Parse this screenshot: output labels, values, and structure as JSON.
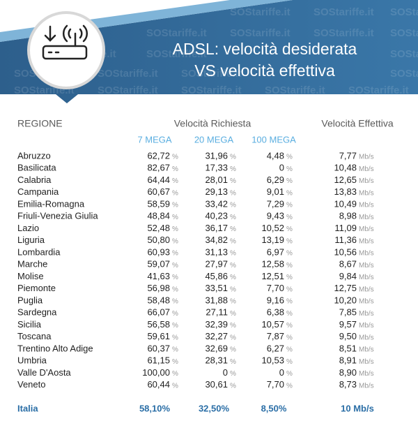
{
  "header": {
    "title_line1": "ADSL: velocità desiderata",
    "title_line2": "VS velocità effettiva",
    "watermark": "SOStariffe.it"
  },
  "table": {
    "col_region": "REGIONE",
    "col_requested": "Velocità Richiesta",
    "col_effective": "Velocità Effettiva",
    "subcols": [
      "7 MEGA",
      "20 MEGA",
      "100 MEGA"
    ],
    "rows": [
      {
        "name": "Abruzzo",
        "cells": [
          {
            "v": "62,72",
            "u": "%"
          },
          {
            "v": "31,96",
            "u": "%"
          },
          {
            "v": "4,48",
            "u": "%"
          },
          {
            "v": "7,77",
            "u": "Mb/s"
          }
        ]
      },
      {
        "name": "Basilicata",
        "cells": [
          {
            "v": "82,67",
            "u": "%"
          },
          {
            "v": "17,33",
            "u": "%"
          },
          {
            "v": "0",
            "u": "%"
          },
          {
            "v": "10,48",
            "u": "Mb/s"
          }
        ]
      },
      {
        "name": "Calabria",
        "cells": [
          {
            "v": "64,44",
            "u": "%"
          },
          {
            "v": "28,01",
            "u": "%"
          },
          {
            "v": "6,29",
            "u": "%"
          },
          {
            "v": "12,65",
            "u": "Mb/s"
          }
        ]
      },
      {
        "name": "Campania",
        "cells": [
          {
            "v": "60,67",
            "u": "%"
          },
          {
            "v": "29,13",
            "u": "%"
          },
          {
            "v": "9,01",
            "u": "%"
          },
          {
            "v": "13,83",
            "u": "Mb/s"
          }
        ]
      },
      {
        "name": "Emilia-Romagna",
        "cells": [
          {
            "v": "58,59",
            "u": "%"
          },
          {
            "v": "33,42",
            "u": "%"
          },
          {
            "v": "7,29",
            "u": "%"
          },
          {
            "v": "10,49",
            "u": "Mb/s"
          }
        ]
      },
      {
        "name": "Friuli-Venezia Giulia",
        "cells": [
          {
            "v": "48,84",
            "u": "%"
          },
          {
            "v": "40,23",
            "u": "%"
          },
          {
            "v": "9,43",
            "u": "%"
          },
          {
            "v": "8,98",
            "u": "Mb/s"
          }
        ]
      },
      {
        "name": "Lazio",
        "cells": [
          {
            "v": "52,48",
            "u": "%"
          },
          {
            "v": "36,17",
            "u": "%"
          },
          {
            "v": "10,52",
            "u": "%"
          },
          {
            "v": "11,09",
            "u": "Mb/s"
          }
        ]
      },
      {
        "name": "Liguria",
        "cells": [
          {
            "v": "50,80",
            "u": "%"
          },
          {
            "v": "34,82",
            "u": "%"
          },
          {
            "v": "13,19",
            "u": "%"
          },
          {
            "v": "11,36",
            "u": "Mb/s"
          }
        ]
      },
      {
        "name": "Lombardia",
        "cells": [
          {
            "v": "60,93",
            "u": "%"
          },
          {
            "v": "31,13",
            "u": "%"
          },
          {
            "v": "6,97",
            "u": "%"
          },
          {
            "v": "10,56",
            "u": "Mb/s"
          }
        ]
      },
      {
        "name": "Marche",
        "cells": [
          {
            "v": "59,07",
            "u": "%"
          },
          {
            "v": "27,97",
            "u": "%"
          },
          {
            "v": "12,58",
            "u": "%"
          },
          {
            "v": "8,67",
            "u": "Mb/s"
          }
        ]
      },
      {
        "name": "Molise",
        "cells": [
          {
            "v": "41,63",
            "u": "%"
          },
          {
            "v": "45,86",
            "u": "%"
          },
          {
            "v": "12,51",
            "u": "%"
          },
          {
            "v": "9,84",
            "u": "Mb/s"
          }
        ]
      },
      {
        "name": "Piemonte",
        "cells": [
          {
            "v": "56,98",
            "u": "%"
          },
          {
            "v": "33,51",
            "u": "%"
          },
          {
            "v": "7,70",
            "u": "%"
          },
          {
            "v": "12,75",
            "u": "Mb/s"
          }
        ]
      },
      {
        "name": "Puglia",
        "cells": [
          {
            "v": "58,48",
            "u": "%"
          },
          {
            "v": "31,88",
            "u": "%"
          },
          {
            "v": "9,16",
            "u": "%"
          },
          {
            "v": "10,20",
            "u": "Mb/s"
          }
        ]
      },
      {
        "name": "Sardegna",
        "cells": [
          {
            "v": "66,07",
            "u": "%"
          },
          {
            "v": "27,11",
            "u": "%"
          },
          {
            "v": "6,38",
            "u": "%"
          },
          {
            "v": "7,85",
            "u": "Mb/s"
          }
        ]
      },
      {
        "name": "Sicilia",
        "cells": [
          {
            "v": "56,58",
            "u": "%"
          },
          {
            "v": "32,39",
            "u": "%"
          },
          {
            "v": "10,57",
            "u": "%"
          },
          {
            "v": "9,57",
            "u": "Mb/s"
          }
        ]
      },
      {
        "name": "Toscana",
        "cells": [
          {
            "v": "59,61",
            "u": "%"
          },
          {
            "v": "32,27",
            "u": "%"
          },
          {
            "v": "7,87",
            "u": "%"
          },
          {
            "v": "9,50",
            "u": "Mb/s"
          }
        ]
      },
      {
        "name": "Trentino Alto Adige",
        "cells": [
          {
            "v": "60,37",
            "u": "%"
          },
          {
            "v": "32,69",
            "u": "%"
          },
          {
            "v": "6,27",
            "u": "%"
          },
          {
            "v": "8,51",
            "u": "Mb/s"
          }
        ]
      },
      {
        "name": "Umbria",
        "cells": [
          {
            "v": "61,15",
            "u": "%"
          },
          {
            "v": "28,31",
            "u": "%"
          },
          {
            "v": "10,53",
            "u": "%"
          },
          {
            "v": "8,91",
            "u": "Mb/s"
          }
        ]
      },
      {
        "name": "Valle D'Aosta",
        "cells": [
          {
            "v": "100,00",
            "u": "%"
          },
          {
            "v": "0",
            "u": "%"
          },
          {
            "v": "0",
            "u": "%"
          },
          {
            "v": "8,90",
            "u": "Mb/s"
          }
        ]
      },
      {
        "name": "Veneto",
        "cells": [
          {
            "v": "60,44",
            "u": "%"
          },
          {
            "v": "30,61",
            "u": "%"
          },
          {
            "v": "7,70",
            "u": "%"
          },
          {
            "v": "8,73",
            "u": "Mb/s"
          }
        ]
      }
    ],
    "total": {
      "name": "Italia",
      "cells": [
        "58,10%",
        "32,50%",
        "8,50%",
        "10 Mb/s"
      ]
    }
  }
}
